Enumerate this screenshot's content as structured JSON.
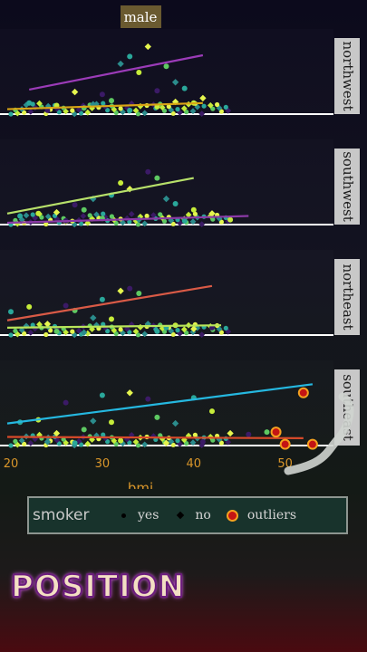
{
  "chart_data": {
    "type": "scatter",
    "title": "male",
    "xlabel": "bmi",
    "xticks": [
      "20",
      "30",
      "40",
      "50"
    ],
    "xlim": [
      19.6,
      54
    ],
    "ylim": [
      0,
      65000
    ],
    "panels": [
      {
        "label": "northwest",
        "fits": [
          {
            "group": "yes",
            "color": "#9b3bb8",
            "x": [
              22,
              41
            ],
            "y": [
              20000,
              48000
            ]
          },
          {
            "group": "no",
            "color": "#d9a515",
            "x": [
              19.6,
              41
            ],
            "y": [
              4000,
              9000
            ]
          }
        ],
        "points": [
          [
            22,
            9000
          ],
          [
            25,
            7000
          ],
          [
            27,
            18000
          ],
          [
            30,
            16000
          ],
          [
            31,
            11000
          ],
          [
            32,
            41000
          ],
          [
            33,
            47000
          ],
          [
            34,
            34000
          ],
          [
            35,
            55000
          ],
          [
            36,
            19000
          ],
          [
            37,
            39000
          ],
          [
            38,
            26000
          ],
          [
            39,
            21000
          ],
          [
            40,
            9000
          ],
          [
            41,
            13000
          ],
          [
            24,
            3000
          ],
          [
            28,
            5000
          ],
          [
            29,
            8000
          ],
          [
            33,
            3000
          ],
          [
            36,
            6000
          ],
          [
            38,
            10000
          ]
        ],
        "outliers": []
      },
      {
        "label": "southwest",
        "fits": [
          {
            "group": "yes",
            "color": "#b7e06a",
            "x": [
              19.6,
              40
            ],
            "y": [
              9000,
              38000
            ]
          },
          {
            "group": "no",
            "color": "#8b3aa6",
            "x": [
              19.6,
              46
            ],
            "y": [
              1500,
              7000
            ]
          }
        ],
        "points": [
          [
            21,
            7000
          ],
          [
            23,
            9000
          ],
          [
            25,
            10000
          ],
          [
            27,
            16000
          ],
          [
            28,
            12000
          ],
          [
            29,
            21000
          ],
          [
            31,
            24000
          ],
          [
            32,
            34000
          ],
          [
            33,
            29000
          ],
          [
            35,
            43000
          ],
          [
            36,
            38000
          ],
          [
            37,
            21000
          ],
          [
            38,
            17000
          ],
          [
            40,
            12000
          ],
          [
            42,
            9000
          ],
          [
            26,
            3000
          ],
          [
            30,
            5000
          ],
          [
            34,
            4000
          ],
          [
            39,
            3000
          ],
          [
            44,
            4000
          ]
        ],
        "outliers": []
      },
      {
        "label": "northeast",
        "fits": [
          {
            "group": "yes",
            "color": "#d95a46",
            "x": [
              19.6,
              42
            ],
            "y": [
              12000,
              40000
            ]
          },
          {
            "group": "no",
            "color": "#b8e45a",
            "x": [
              19.6,
              43
            ],
            "y": [
              6000,
              8000
            ]
          }
        ],
        "points": [
          [
            20,
            19000
          ],
          [
            22,
            23000
          ],
          [
            24,
            9000
          ],
          [
            26,
            24000
          ],
          [
            27,
            20000
          ],
          [
            29,
            14000
          ],
          [
            30,
            29000
          ],
          [
            31,
            13000
          ],
          [
            32,
            36000
          ],
          [
            33,
            38000
          ],
          [
            34,
            34000
          ],
          [
            35,
            9000
          ],
          [
            37,
            6000
          ],
          [
            38,
            8000
          ],
          [
            40,
            5000
          ],
          [
            42,
            6000
          ],
          [
            25,
            3000
          ],
          [
            28,
            2000
          ],
          [
            36,
            3000
          ]
        ],
        "outliers": []
      },
      {
        "label": "southeast",
        "fits": [
          {
            "group": "yes",
            "color": "#25b8e0",
            "x": [
              19.6,
              53
            ],
            "y": [
              18000,
              50000
            ]
          },
          {
            "group": "no",
            "color": "#d84a2a",
            "x": [
              19.6,
              52
            ],
            "y": [
              7000,
              6000
            ]
          }
        ],
        "points": [
          [
            21,
            19000
          ],
          [
            23,
            21000
          ],
          [
            25,
            10000
          ],
          [
            26,
            35000
          ],
          [
            28,
            13000
          ],
          [
            29,
            20000
          ],
          [
            30,
            41000
          ],
          [
            31,
            19000
          ],
          [
            33,
            43000
          ],
          [
            35,
            38000
          ],
          [
            36,
            23000
          ],
          [
            38,
            18000
          ],
          [
            40,
            39000
          ],
          [
            42,
            28000
          ],
          [
            44,
            10000
          ],
          [
            46,
            9000
          ],
          [
            48,
            11000
          ],
          [
            24,
            3000
          ],
          [
            27,
            2000
          ],
          [
            32,
            4000
          ],
          [
            37,
            2000
          ],
          [
            41,
            3000
          ]
        ],
        "outliers": [
          [
            49,
            11000
          ],
          [
            50,
            1000
          ],
          [
            52,
            43000
          ],
          [
            53,
            1000
          ]
        ]
      }
    ],
    "legend": {
      "title": "smoker",
      "placement": "bottom",
      "items": [
        {
          "label": "yes",
          "shape": "circle"
        },
        {
          "label": "no",
          "shape": "diamond"
        },
        {
          "label": "outliers",
          "shape": "ring",
          "color": "#c41414",
          "edge": "#f5a11f"
        }
      ]
    },
    "grid": false
  },
  "banner": "POSITION"
}
